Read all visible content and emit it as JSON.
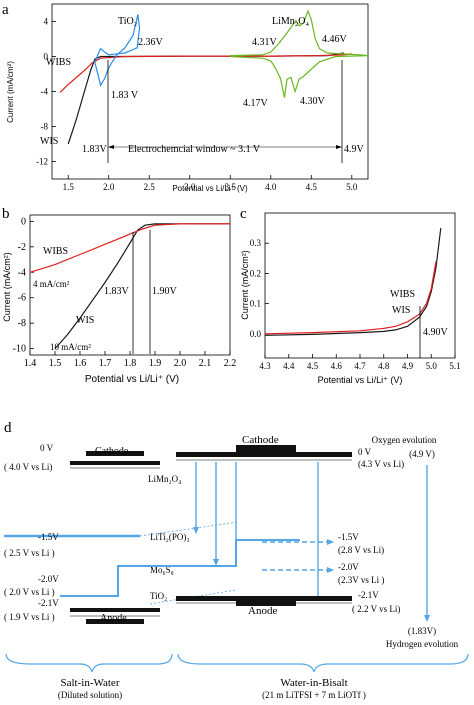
{
  "colors": {
    "wis": "#1a1a1a",
    "wibs": "#e02020",
    "tio2": "#2a8ee8",
    "limn": "#6ab820",
    "diagram": "#55a6e8",
    "gray": "#888888"
  },
  "panel_letters": {
    "a": "a",
    "b": "b",
    "c": "c",
    "d": "d"
  },
  "chart_data": [
    {
      "id": "a",
      "type": "line",
      "xlabel": "Potential vs Li/Li⁺ (V)",
      "ylabel": "Current (mA/cm²)",
      "xlim": [
        1.3,
        5.2
      ],
      "ylim": [
        -14,
        6
      ],
      "xticks": [
        "1.5",
        "2.0",
        "2.5",
        "3.0",
        "3.5",
        "4.0",
        "4.5",
        "5.0"
      ],
      "xtick_values": [
        1.5,
        2.0,
        2.5,
        3.0,
        3.5,
        4.0,
        4.5,
        5.0
      ],
      "yticks": [
        "4",
        "0",
        "-4",
        "-8",
        "-12"
      ],
      "ytick_values": [
        4,
        0,
        -4,
        -8,
        -12
      ],
      "series": [
        {
          "name": "WIS",
          "color": "#1a1a1a",
          "x": [
            1.5,
            1.6,
            1.7,
            1.78,
            1.83,
            1.9,
            2.2,
            3.0,
            4.0,
            4.7,
            4.9
          ],
          "y": [
            -10,
            -7.2,
            -4.0,
            -1.5,
            -0.3,
            0.0,
            0.0,
            0.05,
            0.05,
            0.1,
            0.4
          ]
        },
        {
          "name": "WIBS",
          "color": "#e02020",
          "x": [
            1.4,
            1.5,
            1.6,
            1.7,
            1.8,
            1.9,
            2.2,
            3.0,
            4.0,
            4.6,
            4.9,
            5.0
          ],
          "y": [
            -4.1,
            -3.2,
            -2.4,
            -1.6,
            -0.7,
            -0.2,
            0.0,
            0.05,
            0.05,
            0.1,
            0.2,
            0.3
          ]
        },
        {
          "name": "TiO₂",
          "color": "#2a8ee8",
          "x": [
            1.83,
            1.86,
            1.9,
            1.95,
            2.0,
            2.05,
            2.1,
            2.2,
            2.3,
            2.36,
            2.38,
            2.35,
            2.2,
            2.0,
            1.95,
            1.9,
            1.87,
            1.83
          ],
          "y": [
            -0.7,
            -1.8,
            -3.3,
            -2.5,
            -1.3,
            -0.5,
            0.2,
            1.0,
            2.4,
            4.8,
            3.2,
            1.0,
            0.4,
            0.2,
            0.5,
            0.9,
            0.3,
            -0.7
          ]
        },
        {
          "name": "LiMn₂O₄",
          "color": "#6ab820",
          "x": [
            3.5,
            3.9,
            4.0,
            4.1,
            4.2,
            4.31,
            4.35,
            4.4,
            4.46,
            4.5,
            4.55,
            4.6,
            4.7,
            5.1,
            5.2,
            4.8,
            4.6,
            4.4,
            4.35,
            4.3,
            4.25,
            4.2,
            4.17,
            4.12,
            4.05,
            4.0,
            3.9,
            3.5
          ],
          "y": [
            0.1,
            0.2,
            0.5,
            1.5,
            2.7,
            4.1,
            3.5,
            3.8,
            5.2,
            4.2,
            2.0,
            0.9,
            0.4,
            0.2,
            0.1,
            0.0,
            -0.6,
            -2.3,
            -2.6,
            -4.0,
            -2.4,
            -2.6,
            -4.7,
            -2.5,
            -1.2,
            -0.5,
            -0.2,
            0.0
          ]
        }
      ],
      "annotations": {
        "tio2": "TiO₂",
        "limn": "LiMn₂O₄",
        "v236": "2.36V",
        "v183": "1.83 V",
        "v431": "4.31V",
        "v446": "4.46V",
        "v417": "4.17V",
        "v430": "4.30V",
        "wibs": "WIBS",
        "wis": "WIS",
        "window_left": "1.83V",
        "window_mid": "Electrochemcial window ~ 3.1 V",
        "window_right": "4.9V"
      }
    },
    {
      "id": "b",
      "type": "line",
      "xlabel": "Potential vs Li/Li⁺ (V)",
      "ylabel": "Current (mA/cm²)",
      "xlim": [
        1.4,
        2.2
      ],
      "ylim": [
        -10.5,
        0.5
      ],
      "xticks": [
        "1.4",
        "1.5",
        "1.6",
        "1.7",
        "1.8",
        "1.9",
        "2.0",
        "2.1",
        "2.2"
      ],
      "xtick_values": [
        1.4,
        1.5,
        1.6,
        1.7,
        1.8,
        1.9,
        2.0,
        2.1,
        2.2
      ],
      "yticks": [
        "0",
        "-2",
        "-4",
        "-6",
        "-8",
        "-10"
      ],
      "ytick_values": [
        0,
        -2,
        -4,
        -6,
        -8,
        -10
      ],
      "series": [
        {
          "name": "WIS",
          "color": "#1a1a1a",
          "x": [
            1.5,
            1.55,
            1.6,
            1.65,
            1.7,
            1.75,
            1.8,
            1.83,
            1.86,
            1.9,
            2.0,
            2.2
          ],
          "y": [
            -10,
            -8.9,
            -7.6,
            -6.2,
            -4.8,
            -3.3,
            -1.7,
            -0.7,
            -0.3,
            -0.2,
            -0.2,
            -0.2
          ]
        },
        {
          "name": "WIBS",
          "color": "#e02020",
          "x": [
            1.4,
            1.5,
            1.6,
            1.7,
            1.8,
            1.85,
            1.9,
            2.0,
            2.2
          ],
          "y": [
            -4.0,
            -3.4,
            -2.6,
            -1.8,
            -1.0,
            -0.6,
            -0.3,
            -0.2,
            -0.2
          ]
        }
      ],
      "annotations": {
        "wibs": "WIBS",
        "wis": "WIS",
        "j4": "4 mA/cm²",
        "j10": "10 mA/cm²",
        "v183": "1.83V",
        "v190": "1.90V"
      }
    },
    {
      "id": "c",
      "type": "line",
      "xlabel": "Potential vs Li/Li⁺ (V)",
      "ylabel": "Current (mA/cm²)",
      "xlim": [
        4.3,
        5.1
      ],
      "ylim": [
        -0.08,
        0.4
      ],
      "xticks": [
        "4.3",
        "4.4",
        "4.5",
        "4.6",
        "4.7",
        "4.8",
        "4.9",
        "5.0",
        "5.1"
      ],
      "xtick_values": [
        4.3,
        4.4,
        4.5,
        4.6,
        4.7,
        4.8,
        4.9,
        5.0,
        5.1
      ],
      "yticks": [
        "0.3",
        "0.2",
        "0.1",
        "0.0"
      ],
      "ytick_values": [
        0.3,
        0.2,
        0.1,
        0.0
      ],
      "series": [
        {
          "name": "WIS",
          "color": "#1a1a1a",
          "x": [
            4.3,
            4.5,
            4.7,
            4.8,
            4.85,
            4.9,
            4.95,
            4.98,
            5.0,
            5.02,
            5.04
          ],
          "y": [
            -0.005,
            -0.002,
            0.004,
            0.008,
            0.013,
            0.025,
            0.055,
            0.09,
            0.14,
            0.22,
            0.35
          ]
        },
        {
          "name": "WIBS",
          "color": "#e02020",
          "x": [
            4.3,
            4.5,
            4.7,
            4.8,
            4.85,
            4.9,
            4.95,
            4.98,
            5.0,
            5.02
          ],
          "y": [
            0.0,
            0.004,
            0.01,
            0.018,
            0.025,
            0.04,
            0.065,
            0.1,
            0.15,
            0.24
          ]
        }
      ],
      "annotations": {
        "wibs": "WIBS",
        "wis": "WIS",
        "v490": "4.90V"
      }
    }
  ],
  "diagram": {
    "cathode": "Cathode",
    "anode": "Anode",
    "limn": "LiMn₂O₄",
    "liti": "LiTi₂(PO)₃",
    "mo6s8": "Mo₆S₈",
    "tio2": "TiO₂",
    "left_levels": [
      {
        "top": "0 V",
        "bottom": "( 4.0 V vs  Li)"
      },
      {
        "top": "-1.5V",
        "bottom": "( 2.5 V vs  Li )"
      },
      {
        "top": "-2.0V",
        "bottom": "( 2.0 V vs  Li )"
      },
      {
        "top": "-2.1V",
        "bottom": "( 1.9 V vs  Li )"
      }
    ],
    "right_levels": [
      {
        "top": "0 V",
        "bottom": "(4.3 V vs  Li)"
      },
      {
        "top": "-1.5V",
        "bottom": "(2.8 V vs  Li)"
      },
      {
        "top": "-2.0V",
        "bottom": "(2.3V vs  Li )"
      },
      {
        "top": "-2.1V",
        "bottom": "( 2.2 V vs  Li)"
      }
    ],
    "oxygen": "Oxygen evolution",
    "oxygen_v": "(4.9 V)",
    "hydrogen_v": "(1.83V)",
    "hydrogen": "Hydrogen evolution",
    "salt": "Salt-in-Water",
    "salt_sub": "(Diluted solution)",
    "bisalt": "Water-in-Bisalt",
    "bisalt_sub": "(21 m LiTFSI + 7 m LiOTf )"
  }
}
